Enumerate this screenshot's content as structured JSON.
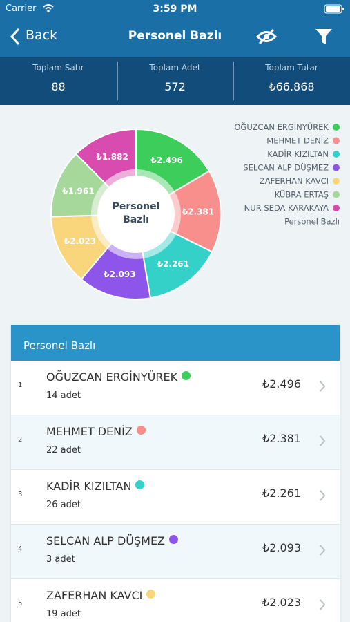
{
  "status_bar": {
    "carrier": "Carrier",
    "time": "3:59 PM"
  },
  "nav": {
    "back": "Back",
    "title": "Personel Bazlı"
  },
  "summary": [
    {
      "label": "Toplam Satır",
      "value": 88
    },
    {
      "label": "Toplam Adet",
      "value": 572
    },
    {
      "label": "Toplam Tutar",
      "value": "₺66.868"
    }
  ],
  "chart_data": {
    "type": "pie",
    "center_label": "Personel Bazlı",
    "legend_title": "Personel Bazlı",
    "categories": [
      "OĞUZCAN ERGİNYÜREK",
      "MEHMET DENİZ",
      "KADİR KIZILTAN",
      "SELCAN ALP DÜŞMEZ",
      "ZAFERHAN KAVCI",
      "KÜBRA ERTAŞ",
      "NUR SEDA KARAKAYA"
    ],
    "values": [
      2496,
      2381,
      2261,
      2093,
      2023,
      1961,
      1882
    ],
    "value_labels": [
      "₺2.496",
      "₺2.381",
      "₺2.261",
      "₺2.093",
      "₺2.023",
      "₺1.961",
      "₺1.882"
    ],
    "colors": [
      "#3dcd5b",
      "#f98f8d",
      "#34d1c9",
      "#8d55e9",
      "#f9d67b",
      "#a6d79b",
      "#d94caf"
    ]
  },
  "list": {
    "title": "Personel Bazlı",
    "rows": [
      {
        "index": 1,
        "name": "OĞUZCAN ERGİNYÜREK",
        "count": "14 adet",
        "amount": "₺2.496"
      },
      {
        "index": 2,
        "name": "MEHMET DENİZ",
        "count": "22 adet",
        "amount": "₺2.381"
      },
      {
        "index": 3,
        "name": "KADİR KIZILTAN",
        "count": "26 adet",
        "amount": "₺2.261"
      },
      {
        "index": 4,
        "name": "SELCAN ALP DÜŞMEZ",
        "count": "3 adet",
        "amount": "₺2.093"
      },
      {
        "index": 5,
        "name": "ZAFERHAN KAVCI",
        "count": "19 adet",
        "amount": "₺2.023"
      }
    ]
  }
}
